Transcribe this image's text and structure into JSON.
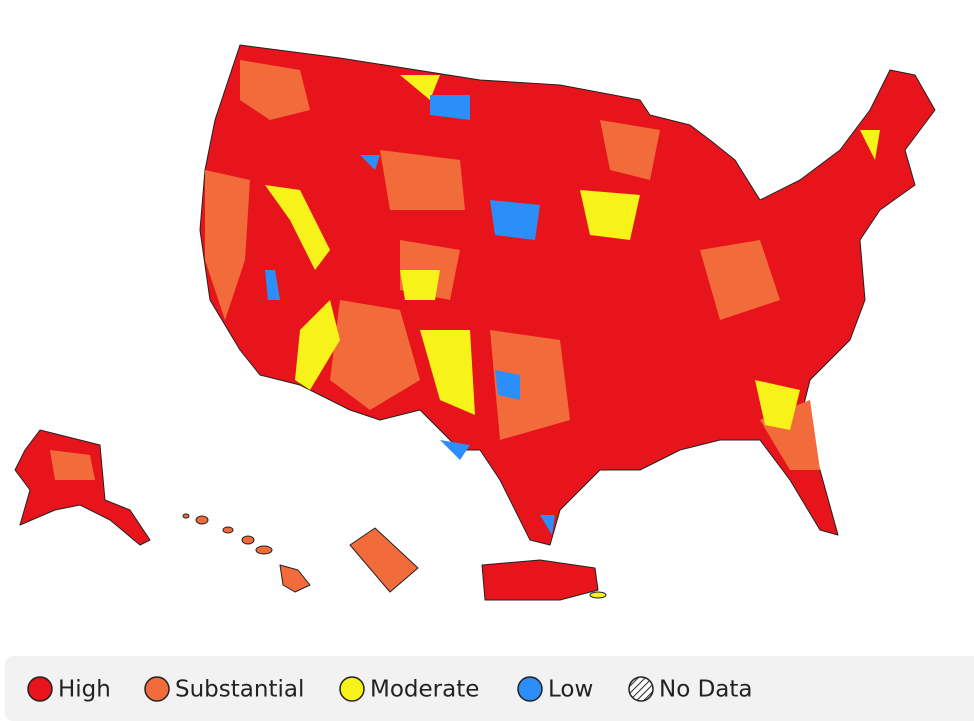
{
  "legend": {
    "items": [
      {
        "label": "High",
        "color": "#e8141b"
      },
      {
        "label": "Substantial",
        "color": "#f26b3a"
      },
      {
        "label": "Moderate",
        "color": "#f7f21a"
      },
      {
        "label": "Low",
        "color": "#2c8ef8"
      },
      {
        "label": "No Data"
      }
    ]
  }
}
